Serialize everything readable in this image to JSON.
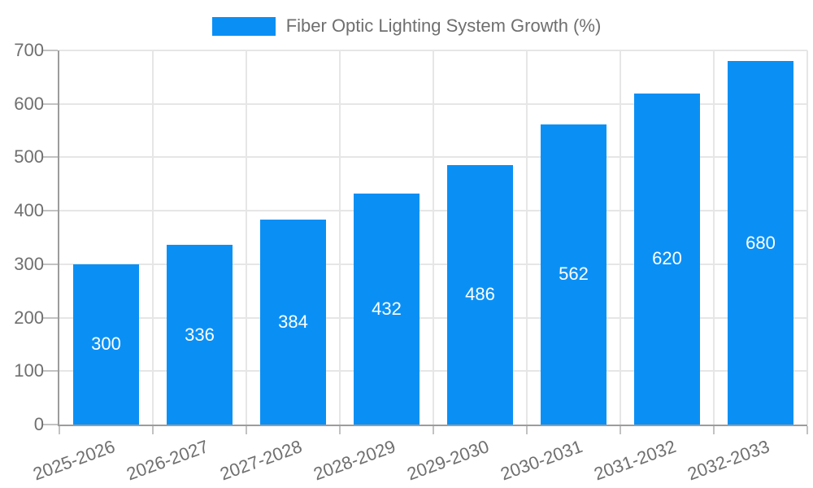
{
  "chart_data": {
    "type": "bar",
    "title": "Fiber Optic Lighting System Growth (%)",
    "categories": [
      "2025-2026",
      "2026-2027",
      "2027-2028",
      "2028-2029",
      "2029-2030",
      "2030-2031",
      "2031-2032",
      "2032-2033"
    ],
    "series": [
      {
        "name": "Fiber Optic Lighting System Growth (%)",
        "values": [
          300,
          336,
          384,
          432,
          486,
          562,
          620,
          680
        ]
      }
    ],
    "values": [
      300,
      336,
      384,
      432,
      486,
      562,
      620,
      680
    ],
    "value_labels_shown": true,
    "xlabel": "",
    "ylabel": "",
    "ylim": [
      0,
      700
    ],
    "y_ticks": [
      0,
      100,
      200,
      300,
      400,
      500,
      600,
      700
    ],
    "grid": true,
    "legend_position": "top-center",
    "x_tick_rotation_deg": -20,
    "colors": {
      "bar": "#0a90f5",
      "value_label": "#ffffff",
      "axis_text": "#6f6f6f",
      "grid_line": "#e6e6e6",
      "axis_line": "#9c9c9c",
      "tick_mark": "#c2c2c2",
      "background": "#ffffff"
    }
  }
}
